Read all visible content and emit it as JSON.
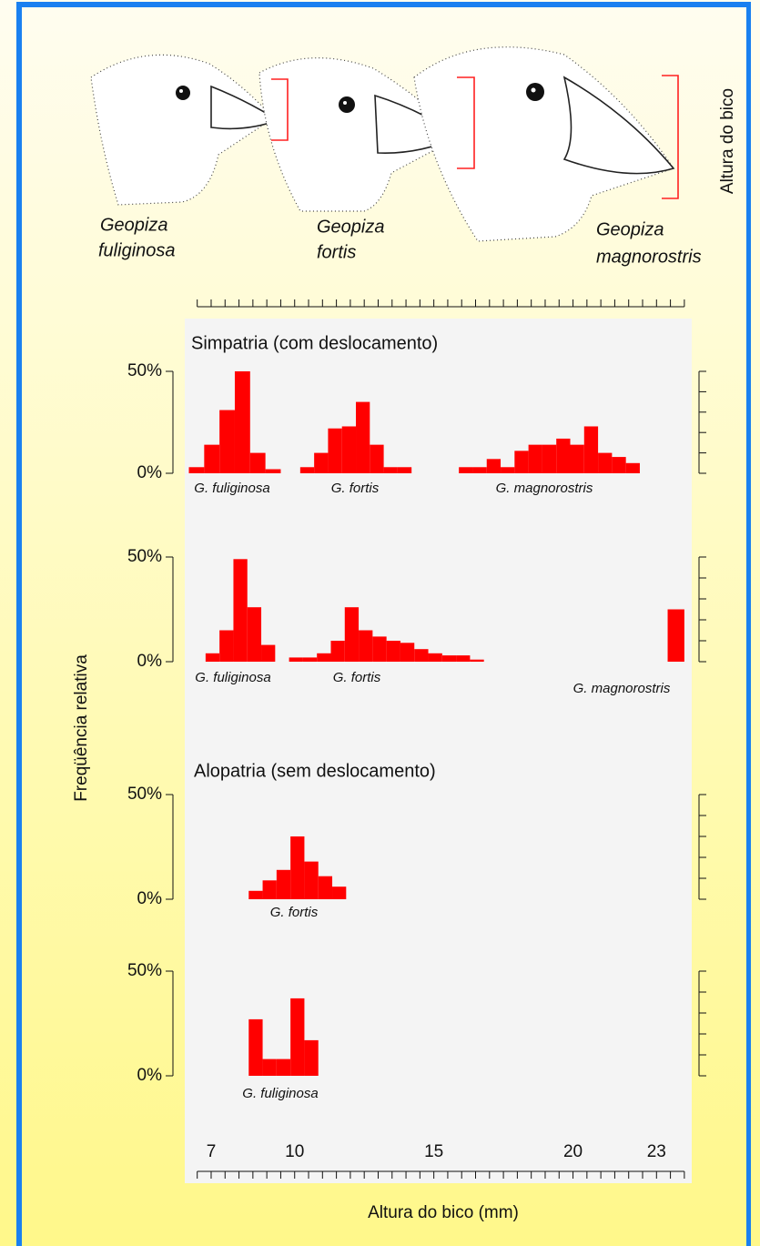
{
  "birds": [
    {
      "lines": [
        "Geopiza",
        "fuliginosa"
      ]
    },
    {
      "lines": [
        "Geopiza",
        "fortis"
      ]
    },
    {
      "lines": [
        "Geopiza",
        "magnorostris"
      ]
    }
  ],
  "beak_label": "Altura do bico",
  "x_axis": {
    "label": "Altura do bico (mm)",
    "xlim": [
      6.0,
      24.2
    ],
    "xticks": [
      7,
      10,
      15,
      20,
      23
    ],
    "minor_ticks": [
      6.5,
      7,
      7.5,
      8,
      8.5,
      9,
      9.5,
      10,
      10.5,
      11,
      11.5,
      12,
      12.5,
      13,
      13.5,
      14,
      14.5,
      15,
      15.5,
      16,
      16.5,
      17,
      17.5,
      18,
      18.5,
      19,
      19.5,
      20,
      20.5,
      21,
      21.5,
      22,
      22.5,
      23,
      23.5,
      24
    ]
  },
  "y_label": "Freqüência relativa",
  "chart_data": [
    {
      "type": "histogram",
      "title": "Simpatria (com deslocamento)",
      "color": "#ff0000",
      "ylim": [
        0,
        50
      ],
      "yticks": [
        {
          "value": 0,
          "label": "0%"
        },
        {
          "value": 50,
          "label": "50%"
        }
      ],
      "y_minor_ticks": [
        0,
        10,
        20,
        30,
        40,
        50
      ],
      "series": [
        {
          "name": "G. fuliginosa",
          "bins": [
            6.2,
            6.75,
            7.3,
            7.85,
            8.4,
            8.95,
            9.5
          ],
          "values": [
            3,
            14,
            31,
            50,
            10,
            2
          ]
        },
        {
          "name": "G. fortis",
          "bins": [
            10.2,
            10.7,
            11.2,
            11.7,
            12.2,
            12.7,
            13.2,
            13.7,
            14.2
          ],
          "values": [
            3,
            10,
            22,
            23,
            35,
            14,
            3,
            3
          ]
        },
        {
          "name": "G. magnorostris",
          "bins": [
            15.9,
            16.4,
            16.9,
            17.4,
            17.9,
            18.4,
            18.9,
            19.4,
            19.9,
            20.4,
            20.9,
            21.4,
            21.9,
            22.4
          ],
          "values": [
            3,
            3,
            7,
            3,
            11,
            14,
            14,
            17,
            14,
            23,
            10,
            8,
            5
          ]
        }
      ]
    },
    {
      "type": "histogram",
      "color": "#ff0000",
      "ylim": [
        0,
        50
      ],
      "yticks": [
        {
          "value": 0,
          "label": "0%"
        },
        {
          "value": 50,
          "label": "50%"
        }
      ],
      "y_minor_ticks": [
        0,
        10,
        20,
        30,
        40,
        50
      ],
      "series": [
        {
          "name": "G. fuliginosa",
          "bins": [
            6.8,
            7.3,
            7.8,
            8.3,
            8.8,
            9.3
          ],
          "values": [
            4,
            15,
            49,
            26,
            8
          ]
        },
        {
          "name": "G. fortis",
          "bins": [
            9.8,
            10.3,
            10.8,
            11.3,
            11.8,
            12.3,
            12.8,
            13.3,
            13.8,
            14.3,
            14.8,
            15.3,
            15.8,
            16.3,
            16.8
          ],
          "values": [
            2,
            2,
            4,
            10,
            26,
            15,
            12,
            10,
            9,
            6,
            4,
            3,
            3,
            1
          ]
        },
        {
          "name": "G. magnorostris",
          "bins": [
            23.4,
            24.0
          ],
          "values": [
            25
          ]
        }
      ]
    },
    {
      "type": "histogram",
      "title": "Alopatria (sem deslocamento)",
      "color": "#ff0000",
      "ylim": [
        0,
        50
      ],
      "yticks": [
        {
          "value": 0,
          "label": "0%"
        },
        {
          "value": 50,
          "label": "50%"
        }
      ],
      "y_minor_ticks": [
        0,
        10,
        20,
        30,
        40,
        50
      ],
      "series": [
        {
          "name": "G. fortis",
          "bins": [
            8.35,
            8.85,
            9.35,
            9.85,
            10.35,
            10.85,
            11.35,
            11.85
          ],
          "values": [
            4,
            9,
            14,
            30,
            18,
            11,
            6
          ]
        }
      ]
    },
    {
      "type": "histogram",
      "color": "#ff0000",
      "ylim": [
        0,
        50
      ],
      "yticks": [
        {
          "value": 0,
          "label": "0%"
        },
        {
          "value": 50,
          "label": "50%"
        }
      ],
      "y_minor_ticks": [
        0,
        10,
        20,
        30,
        40,
        50
      ],
      "series": [
        {
          "name": "G. fuliginosa",
          "bins": [
            8.35,
            8.85,
            9.35,
            9.85,
            10.35,
            10.85
          ],
          "values": [
            27,
            8,
            8,
            37,
            17
          ]
        }
      ]
    }
  ]
}
